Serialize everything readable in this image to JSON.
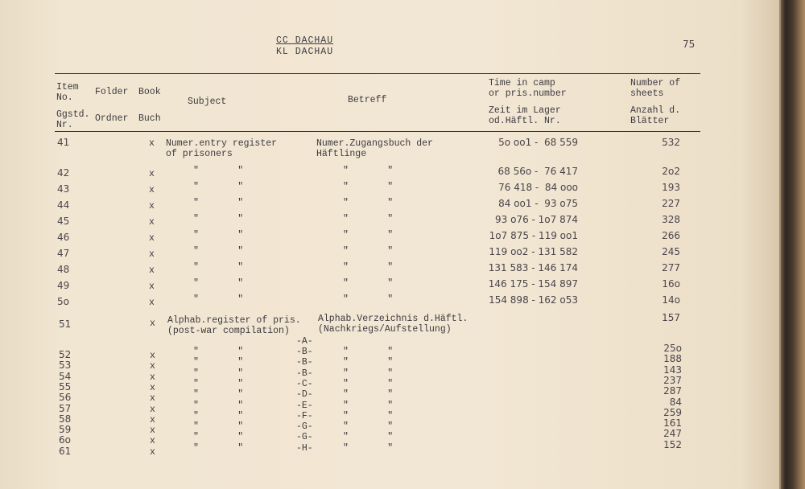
{
  "header": {
    "title_line1": "CC DACHAU",
    "title_line2": "KL DACHAU",
    "page_number": "75"
  },
  "columns": {
    "item_en": "Item\nNo.",
    "item_de": "Ggstd.\nNr.",
    "folder_en": "Folder",
    "folder_de": "Ordner",
    "book_en": "Book",
    "book_de": "Buch",
    "subject": "Subject",
    "betreff": "Betreff",
    "time_en": "Time in camp\nor pris.number",
    "time_de": "Zeit im Lager\nod.Häftl. Nr.",
    "sheets_en": "Number of\nsheets",
    "sheets_de": "Anzahl d.\nBlätter"
  },
  "entries": [
    {
      "item": "41",
      "book": "x",
      "subject": "Numer.entry register\nof prisoners",
      "betreff": "Numer.Zugangsbuch der\nHäftlinge",
      "range": "5o oo1 -  68 559",
      "sheets": "532"
    },
    {
      "item": "42",
      "book": "x",
      "subject": "\"       \"",
      "betreff": "\"       \"",
      "range": "68 56o -  76 417",
      "sheets": "2o2"
    },
    {
      "item": "43",
      "book": "x",
      "subject": "\"       \"",
      "betreff": "\"       \"",
      "range": "76 418 -  84 ooo",
      "sheets": "193"
    },
    {
      "item": "44",
      "book": "x",
      "subject": "\"       \"",
      "betreff": "\"       \"",
      "range": "84 oo1 -  93 o75",
      "sheets": "227"
    },
    {
      "item": "45",
      "book": "x",
      "subject": "\"       \"",
      "betreff": "\"       \"",
      "range": "93 o76 - 1o7 874",
      "sheets": "328"
    },
    {
      "item": "46",
      "book": "x",
      "subject": "\"       \"",
      "betreff": "\"       \"",
      "range": "1o7 875 - 119 oo1",
      "sheets": "266"
    },
    {
      "item": "47",
      "book": "x",
      "subject": "\"       \"",
      "betreff": "\"       \"",
      "range": "119 oo2 - 131 582",
      "sheets": "245"
    },
    {
      "item": "48",
      "book": "x",
      "subject": "\"       \"",
      "betreff": "\"       \"",
      "range": "131 583 - 146 174",
      "sheets": "277"
    },
    {
      "item": "49",
      "book": "x",
      "subject": "\"       \"",
      "betreff": "\"       \"",
      "range": "146 175 - 154 897",
      "sheets": "16o"
    },
    {
      "item": "5o",
      "book": "x",
      "subject": "\"       \"",
      "betreff": "\"       \"",
      "range": "154 898 - 162 o53",
      "sheets": "14o"
    }
  ],
  "alpha_header": {
    "item": "51",
    "book": "x",
    "subject": "Alphab.register of pris.\n(post-war compilation)",
    "betreff": "Alphab.Verzeichnis d.Häftl.\n(Nachkriegs/Aufstellung)",
    "sheets": "157",
    "letter": "-A-"
  },
  "alpha_entries": [
    {
      "item": "52",
      "book": "x",
      "ditto": "\"       \"",
      "letter": "-B-",
      "sheets": "25o"
    },
    {
      "item": "53",
      "book": "x",
      "ditto": "\"       \"",
      "letter": "-B-",
      "sheets": "188"
    },
    {
      "item": "54",
      "book": "x",
      "ditto": "\"       \"",
      "letter": "-B-",
      "sheets": "143"
    },
    {
      "item": "55",
      "book": "x",
      "ditto": "\"       \"",
      "letter": "-C-",
      "sheets": "237"
    },
    {
      "item": "56",
      "book": "x",
      "ditto": "\"       \"",
      "letter": "-D-",
      "sheets": "287"
    },
    {
      "item": "57",
      "book": "x",
      "ditto": "\"       \"",
      "letter": "-E-",
      "sheets": "84"
    },
    {
      "item": "58",
      "book": "x",
      "ditto": "\"       \"",
      "letter": "-F-",
      "sheets": "259"
    },
    {
      "item": "59",
      "book": "x",
      "ditto": "\"       \"",
      "letter": "-G-",
      "sheets": "161"
    },
    {
      "item": "6o",
      "book": "x",
      "ditto": "\"       \"",
      "letter": "-G-",
      "sheets": "247"
    },
    {
      "item": "61",
      "book": "x",
      "ditto": "\"       \"",
      "letter": "-H-",
      "sheets": "152"
    }
  ]
}
